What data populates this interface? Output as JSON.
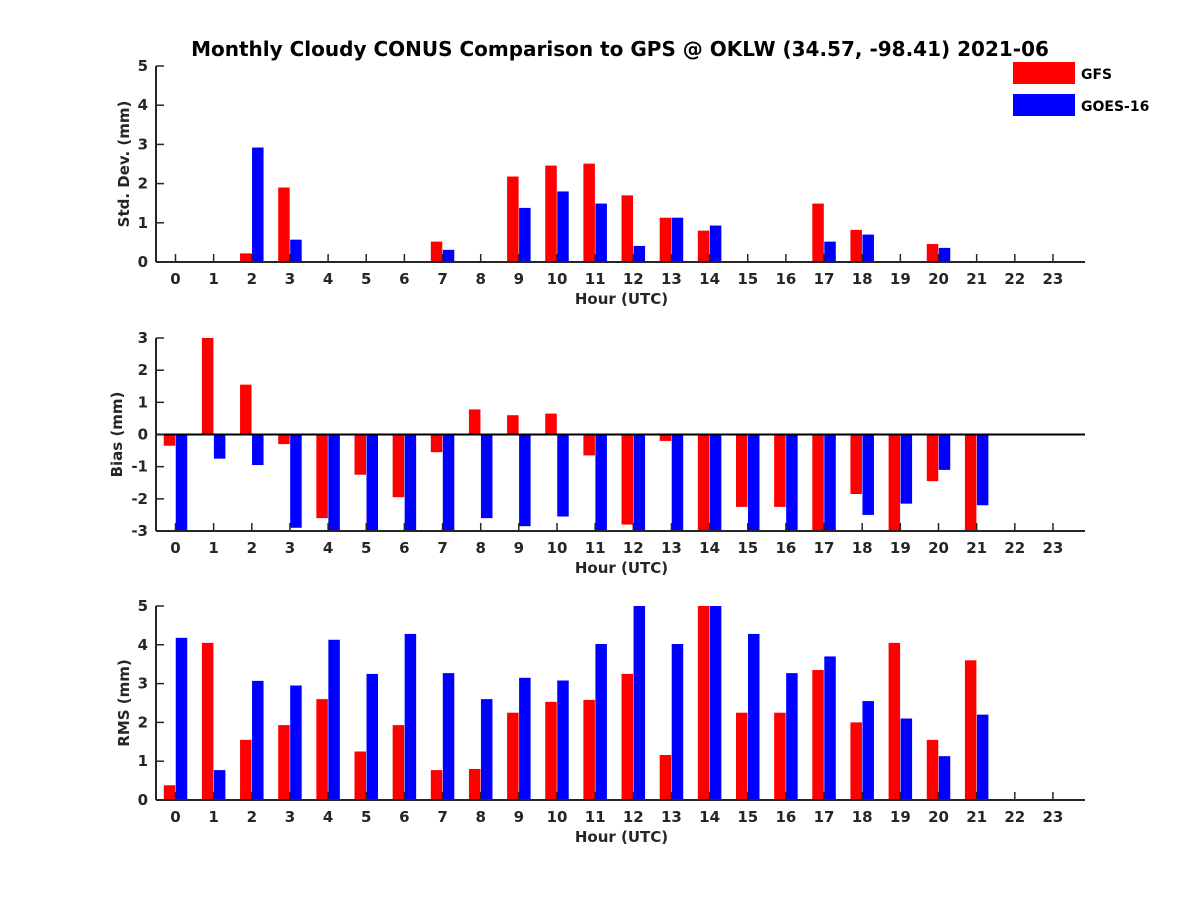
{
  "figure": {
    "title": "Monthly Cloudy CONUS Comparison to GPS @ OKLW (34.57, -98.41) 2021-06"
  },
  "legend": {
    "placement": "top-right",
    "items": [
      {
        "label": "GFS",
        "color": "#ff0000"
      },
      {
        "label": "GOES-16",
        "color": "#0000ff"
      }
    ]
  },
  "chart_data": [
    {
      "type": "bar",
      "xlabel": "Hour (UTC)",
      "ylabel": "Std. Dev. (mm)",
      "ylim": [
        0,
        5
      ],
      "yticks": [
        0,
        1,
        2,
        3,
        4,
        5
      ],
      "categories": [
        "0",
        "1",
        "2",
        "3",
        "4",
        "5",
        "6",
        "7",
        "8",
        "9",
        "10",
        "11",
        "12",
        "13",
        "14",
        "15",
        "16",
        "17",
        "18",
        "19",
        "20",
        "21",
        "22",
        "23"
      ],
      "series": [
        {
          "name": "GFS",
          "color": "#ff0000",
          "values": [
            null,
            null,
            0.22,
            1.9,
            null,
            null,
            null,
            0.52,
            null,
            2.18,
            2.46,
            2.51,
            1.7,
            1.13,
            0.8,
            null,
            null,
            1.49,
            0.82,
            null,
            0.46,
            null,
            null,
            null
          ]
        },
        {
          "name": "GOES-16",
          "color": "#0000ff",
          "values": [
            null,
            null,
            2.92,
            0.57,
            null,
            null,
            null,
            0.31,
            null,
            1.38,
            1.8,
            1.49,
            0.41,
            1.13,
            0.93,
            null,
            null,
            0.52,
            0.7,
            null,
            0.36,
            null,
            null,
            null
          ]
        }
      ]
    },
    {
      "type": "bar",
      "xlabel": "Hour (UTC)",
      "ylabel": "Bias (mm)",
      "ylim": [
        -3,
        3
      ],
      "yticks": [
        -3,
        -2,
        -1,
        0,
        1,
        2,
        3
      ],
      "zero_line": true,
      "categories": [
        "0",
        "1",
        "2",
        "3",
        "4",
        "5",
        "6",
        "7",
        "8",
        "9",
        "10",
        "11",
        "12",
        "13",
        "14",
        "15",
        "16",
        "17",
        "18",
        "19",
        "20",
        "21",
        "22",
        "23"
      ],
      "series": [
        {
          "name": "GFS",
          "color": "#ff0000",
          "values": [
            -0.35,
            3.0,
            1.55,
            -0.3,
            -2.6,
            -1.25,
            -1.95,
            -0.55,
            0.78,
            0.6,
            0.65,
            -0.65,
            -2.8,
            -0.2,
            -3.0,
            -2.25,
            -2.25,
            -3.0,
            -1.85,
            -3.0,
            -1.45,
            -3.0,
            null,
            null
          ]
        },
        {
          "name": "GOES-16",
          "color": "#0000ff",
          "values": [
            -3.0,
            -0.75,
            -0.95,
            -2.9,
            -3.0,
            -3.0,
            -3.0,
            -3.0,
            -2.6,
            -2.85,
            -2.55,
            -3.0,
            -3.0,
            -3.0,
            -3.0,
            -3.0,
            -3.0,
            -3.0,
            -2.5,
            -2.15,
            -1.1,
            -2.2,
            null,
            null
          ]
        }
      ]
    },
    {
      "type": "bar",
      "xlabel": "Hour (UTC)",
      "ylabel": "RMS (mm)",
      "ylim": [
        0,
        5
      ],
      "yticks": [
        0,
        1,
        2,
        3,
        4,
        5
      ],
      "categories": [
        "0",
        "1",
        "2",
        "3",
        "4",
        "5",
        "6",
        "7",
        "8",
        "9",
        "10",
        "11",
        "12",
        "13",
        "14",
        "15",
        "16",
        "17",
        "18",
        "19",
        "20",
        "21",
        "22",
        "23"
      ],
      "series": [
        {
          "name": "GFS",
          "color": "#ff0000",
          "values": [
            0.38,
            4.05,
            1.55,
            1.93,
            2.6,
            1.25,
            1.93,
            0.77,
            0.8,
            2.25,
            2.53,
            2.58,
            3.25,
            1.16,
            5.0,
            2.25,
            2.25,
            3.35,
            2.0,
            4.05,
            1.55,
            3.6,
            null,
            null
          ]
        },
        {
          "name": "GOES-16",
          "color": "#0000ff",
          "values": [
            4.18,
            0.77,
            3.07,
            2.95,
            4.13,
            3.25,
            4.28,
            3.27,
            2.6,
            3.15,
            3.08,
            4.02,
            5.0,
            4.02,
            5.0,
            4.28,
            3.27,
            3.7,
            2.55,
            2.1,
            1.13,
            2.2,
            null,
            null
          ]
        }
      ]
    }
  ]
}
